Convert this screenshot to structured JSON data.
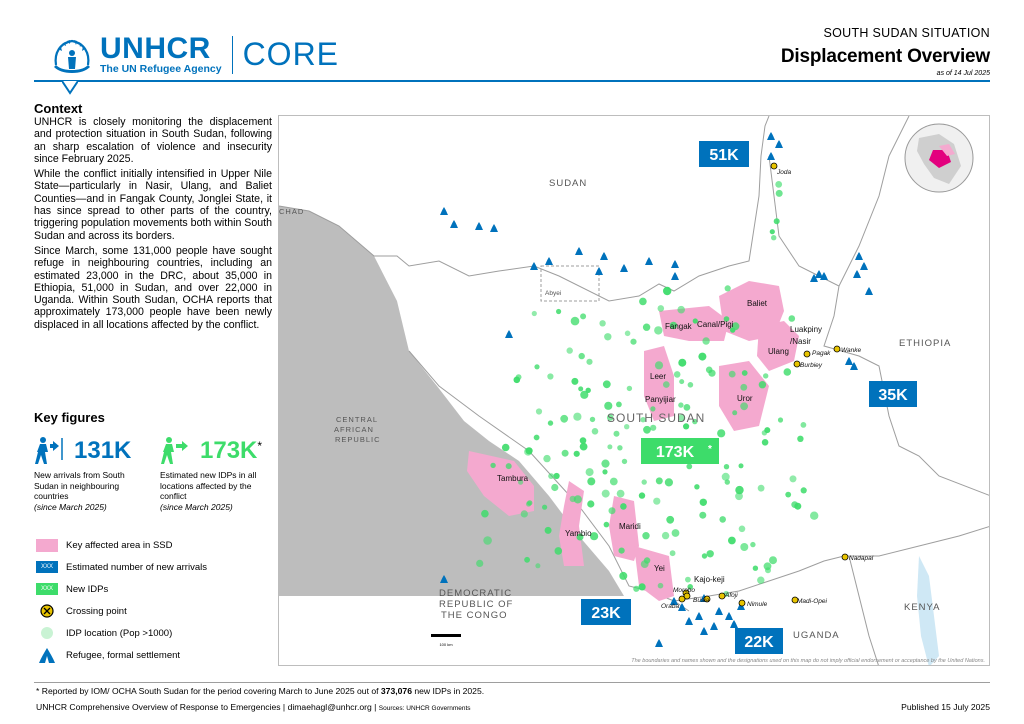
{
  "header": {
    "org_name": "UNHCR",
    "org_tagline": "The UN Refugee Agency",
    "product": "CORE",
    "situation": "SOUTH SUDAN SITUATION",
    "title": "Displacement Overview",
    "as_of": "as of 14 Jul 2025"
  },
  "context": {
    "heading": "Context",
    "paragraphs": [
      "UNHCR is closely monitoring the displacement and protection situation in South Sudan, following an sharp escalation of violence and insecurity since February 2025.",
      "While the conflict initially intensified in Upper Nile State—particularly in Nasir, Ulang, and Baliet Counties—and in Fangak County, Jonglei State, it has since spread to other parts of the country, triggering population movements both within South Sudan and across its borders.",
      "Since March, some 131,000 people have sought refuge in neighbouring countries, including an estimated 23,000 in the DRC, about 35,000 in Ethiopia, 51,000 in Sudan, and over 22,000 in Uganda. Within South Sudan, OCHA reports that approximately 173,000 people have been newly displaced in all locations affected by the conflict."
    ]
  },
  "key_figures": {
    "heading": "Key figures",
    "arrivals": {
      "value": "131K",
      "desc": "New arrivals from South Sudan in neighbouring countries",
      "since": "(since March 2025)"
    },
    "idps": {
      "value": "173K",
      "star": "*",
      "desc": "Estimated new IDPs in all locations affected by the conflict",
      "since": "(since March 2025)"
    }
  },
  "legend": {
    "affected": "Key affected area in SSD",
    "arrivals": "Estimated number of new arrivals",
    "idps": "New IDPs",
    "crossing": "Crossing point",
    "idp_location": "IDP location (Pop >1000)",
    "settlement": "Refugee, formal settlement",
    "box_placeholder": "XXX"
  },
  "map": {
    "countries": {
      "sudan": "SUDAN",
      "chad": "CHAD",
      "car": [
        "CENTRAL",
        "AFRICAN",
        "REPUBLIC"
      ],
      "ethiopia": "ETHIOPIA",
      "south_sudan": "SOUTH SUDAN",
      "drc": [
        "DEMOCRATIC",
        "REPUBLIC OF",
        "THE CONGO"
      ],
      "uganda": "UGANDA",
      "kenya": "KENYA",
      "abyei": "Abyei"
    },
    "figures": {
      "sudan": "51K",
      "ethiopia": "35K",
      "drc": "23K",
      "uganda": "22K",
      "ssd_idps": "173K",
      "ssd_star": "*"
    },
    "places": {
      "joda": "Joda",
      "baliet": "Baliet",
      "fangak": "Fangak",
      "canal_pigi": "Canal/Pigi",
      "luakpiny": "Luakpiny",
      "nasir": "/Nasir",
      "ulang": "Ulang",
      "pagak": "Pagak",
      "wanke": "Wanke",
      "burbiey": "Burbiey",
      "leer": "Leer",
      "panyijiar": "Panyijiar",
      "uror": "Uror",
      "tambura": "Tambura",
      "yambio": "Yambio",
      "maridi": "Maridi",
      "yei": "Yei",
      "kajo_keji": "Kajo-keji",
      "morobo": "Morobo",
      "oraba": "Oraba",
      "busia": "Busia",
      "afoji": "Afoji",
      "nimule": "Nimule",
      "madi_opei": "Madi-Opei",
      "nadapal": "Nadapal"
    },
    "scale": "100 km",
    "disclaimer": "The boundaries and names shown and the designations used on this map do not imply official endorsement or acceptance by the United Nations."
  },
  "colors": {
    "unhcr_blue": "#0072bc",
    "idp_green": "#3ddc6a",
    "affected_pink": "#f4a9cf",
    "car_grey": "#bdbdbd",
    "crossing_yellow": "#e8c400"
  },
  "footer": {
    "footnote_pre": "* Reported by IOM/ OCHA South Sudan for the period covering March to June 2025 out of ",
    "footnote_bold": "373,076",
    "footnote_post": " new IDPs in 2025.",
    "left": "UNHCR Comprehensive Overview of Response to Emergencies",
    "email": "dimaehagl@unhcr.org",
    "sources": "Sources: UNHCR Governments",
    "published": "Published 15 July 2025"
  }
}
